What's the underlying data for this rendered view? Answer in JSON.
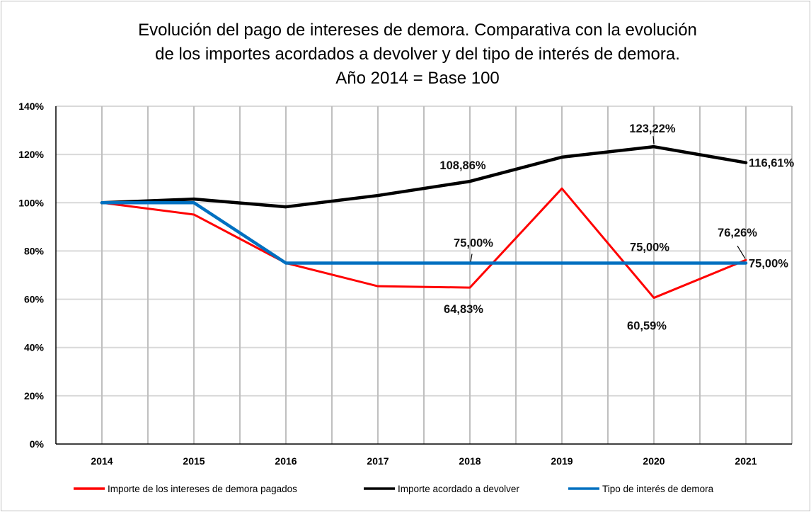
{
  "chart_data": {
    "type": "line",
    "title": [
      "Evolución del pago de intereses de demora. Comparativa con la evolución",
      "de los importes acordados a devolver y del tipo de interés de demora.",
      "Año 2014 = Base 100"
    ],
    "xlabel": "",
    "ylabel": "",
    "categories": [
      "2014",
      "2015",
      "2016",
      "2017",
      "2018",
      "2019",
      "2020",
      "2021"
    ],
    "ylim": [
      0,
      140
    ],
    "yticks": [
      0,
      20,
      40,
      60,
      80,
      100,
      120,
      140
    ],
    "ytick_labels": [
      "0%",
      "20%",
      "40%",
      "60%",
      "80%",
      "100%",
      "120%",
      "140%"
    ],
    "grid": true,
    "legend_position": "bottom",
    "series": [
      {
        "name": "Importe de los intereses de demora pagados",
        "color": "#ff0000",
        "values": [
          100,
          95.1,
          75.0,
          65.4,
          64.83,
          105.9,
          60.59,
          76.26
        ]
      },
      {
        "name": "Importe acordado a devolver",
        "color": "#000000",
        "values": [
          100,
          101.5,
          98.3,
          103.0,
          108.86,
          118.9,
          123.22,
          116.61
        ]
      },
      {
        "name": "Tipo de interés de demora",
        "color": "#0070c0",
        "values": [
          100,
          100,
          75.0,
          75.0,
          75.0,
          75.0,
          75.0,
          75.0
        ]
      }
    ],
    "data_labels": [
      {
        "series": 1,
        "category": "2018",
        "text": "108,86%"
      },
      {
        "series": 1,
        "category": "2020",
        "text": "123,22%"
      },
      {
        "series": 1,
        "category": "2021",
        "text": "116,61%"
      },
      {
        "series": 2,
        "category": "2018",
        "text": "75,00%"
      },
      {
        "series": 2,
        "category": "2020",
        "text": "75,00%"
      },
      {
        "series": 2,
        "category": "2021",
        "text": "75,00%"
      },
      {
        "series": 0,
        "category": "2018",
        "text": "64,83%"
      },
      {
        "series": 0,
        "category": "2020",
        "text": "60,59%"
      },
      {
        "series": 0,
        "category": "2021",
        "text": "76,26%"
      }
    ]
  }
}
